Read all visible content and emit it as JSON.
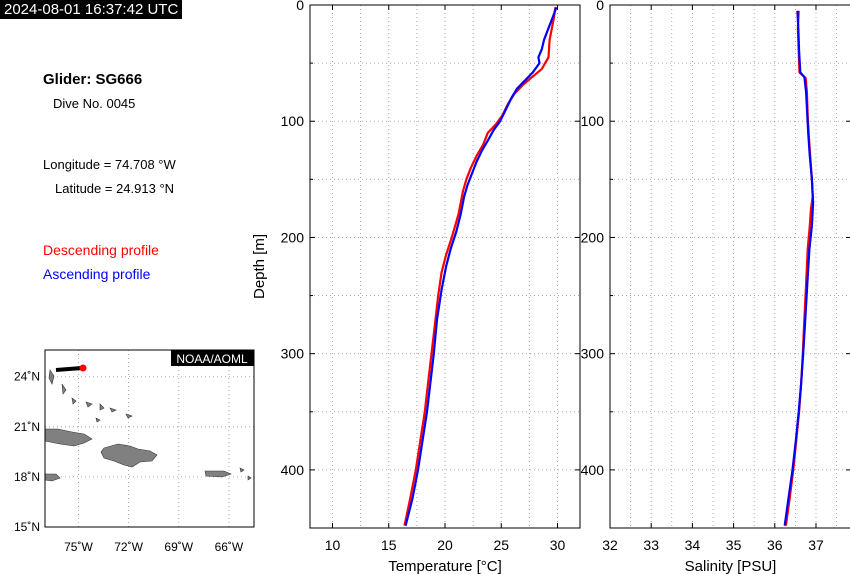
{
  "header": {
    "timestamp": "2024-08-01 16:37:42 UTC",
    "glider": "Glider: SG666",
    "dive": "Dive No. 0045",
    "longitude": "Longitude = 74.708 °W",
    "latitude": "Latitude = 24.913 °N"
  },
  "legend": {
    "descending": "Descending profile",
    "ascending": "Ascending profile",
    "descending_color": "#ff0000",
    "ascending_color": "#0000ff"
  },
  "map": {
    "badge": "NOAA/AOML",
    "lat_labels": [
      "24˚N",
      "21˚N",
      "18˚N",
      "15˚N"
    ],
    "lon_labels": [
      "75˚W",
      "72˚W",
      "69˚W",
      "66˚W"
    ],
    "land_color": "#808080",
    "track_color": "#000000",
    "position_color": "#ff0000"
  },
  "chart_data": [
    {
      "type": "line",
      "xlabel": "Temperature [°C]",
      "ylabel": "Depth [m]",
      "xlim": [
        8,
        32
      ],
      "ylim": [
        0,
        450
      ],
      "y_inverted": true,
      "xticks": [
        10,
        15,
        20,
        25,
        30
      ],
      "yticks": [
        0,
        100,
        200,
        300,
        400
      ],
      "grid": true,
      "series": [
        {
          "name": "Descending profile",
          "color": "#ff0000",
          "points": [
            [
              29.8,
              2
            ],
            [
              29.7,
              10
            ],
            [
              29.5,
              20
            ],
            [
              29.3,
              30
            ],
            [
              29.2,
              45
            ],
            [
              28.6,
              55
            ],
            [
              28.0,
              60
            ],
            [
              27.0,
              68
            ],
            [
              26.2,
              76
            ],
            [
              25.6,
              85
            ],
            [
              25.1,
              95
            ],
            [
              24.5,
              103
            ],
            [
              23.8,
              110
            ],
            [
              23.4,
              120
            ],
            [
              22.8,
              130
            ],
            [
              22.3,
              140
            ],
            [
              21.9,
              150
            ],
            [
              21.6,
              160
            ],
            [
              21.2,
              180
            ],
            [
              20.6,
              200
            ],
            [
              20.1,
              215
            ],
            [
              19.7,
              230
            ],
            [
              19.4,
              250
            ],
            [
              19.1,
              275
            ],
            [
              18.8,
              300
            ],
            [
              18.5,
              325
            ],
            [
              18.2,
              350
            ],
            [
              17.8,
              375
            ],
            [
              17.4,
              400
            ],
            [
              16.9,
              425
            ],
            [
              16.4,
              448
            ]
          ]
        },
        {
          "name": "Ascending profile",
          "color": "#0000ff",
          "points": [
            [
              29.9,
              2
            ],
            [
              29.6,
              10
            ],
            [
              29.2,
              20
            ],
            [
              28.8,
              30
            ],
            [
              28.6,
              38
            ],
            [
              28.3,
              45
            ],
            [
              28.4,
              50
            ],
            [
              27.8,
              58
            ],
            [
              27.0,
              66
            ],
            [
              26.4,
              72
            ],
            [
              25.9,
              80
            ],
            [
              25.4,
              90
            ],
            [
              24.9,
              100
            ],
            [
              24.3,
              108
            ],
            [
              23.9,
              115
            ],
            [
              23.3,
              125
            ],
            [
              22.8,
              135
            ],
            [
              22.4,
              145
            ],
            [
              22.0,
              155
            ],
            [
              21.7,
              165
            ],
            [
              21.4,
              180
            ],
            [
              21.0,
              195
            ],
            [
              20.5,
              210
            ],
            [
              20.1,
              225
            ],
            [
              19.7,
              245
            ],
            [
              19.3,
              270
            ],
            [
              19.0,
              300
            ],
            [
              18.7,
              325
            ],
            [
              18.4,
              350
            ],
            [
              18.0,
              375
            ],
            [
              17.6,
              400
            ],
            [
              17.1,
              425
            ],
            [
              16.5,
              448
            ]
          ]
        }
      ]
    },
    {
      "type": "line",
      "xlabel": "Salinity [PSU]",
      "ylabel": "",
      "xlim": [
        32,
        37.85
      ],
      "ylim": [
        0,
        450
      ],
      "y_inverted": true,
      "xticks": [
        32,
        33,
        34,
        35,
        36,
        37
      ],
      "yticks": [
        0,
        100,
        200,
        300,
        400
      ],
      "grid": true,
      "series": [
        {
          "name": "Descending profile",
          "color": "#ff0000",
          "points": [
            [
              36.58,
              5
            ],
            [
              36.56,
              20
            ],
            [
              36.58,
              40
            ],
            [
              36.6,
              58
            ],
            [
              36.75,
              63
            ],
            [
              36.78,
              75
            ],
            [
              36.8,
              95
            ],
            [
              36.82,
              110
            ],
            [
              36.86,
              130
            ],
            [
              36.9,
              150
            ],
            [
              36.92,
              165
            ],
            [
              36.88,
              175
            ],
            [
              36.85,
              190
            ],
            [
              36.8,
              210
            ],
            [
              36.76,
              240
            ],
            [
              36.72,
              270
            ],
            [
              36.68,
              300
            ],
            [
              36.64,
              325
            ],
            [
              36.59,
              350
            ],
            [
              36.52,
              375
            ],
            [
              36.45,
              400
            ],
            [
              36.36,
              425
            ],
            [
              36.27,
              448
            ]
          ]
        },
        {
          "name": "Ascending profile",
          "color": "#0000ff",
          "points": [
            [
              36.55,
              5
            ],
            [
              36.57,
              20
            ],
            [
              36.59,
              40
            ],
            [
              36.62,
              58
            ],
            [
              36.72,
              62
            ],
            [
              36.76,
              75
            ],
            [
              36.79,
              95
            ],
            [
              36.81,
              110
            ],
            [
              36.85,
              130
            ],
            [
              36.9,
              150
            ],
            [
              36.93,
              170
            ],
            [
              36.9,
              190
            ],
            [
              36.84,
              210
            ],
            [
              36.79,
              240
            ],
            [
              36.74,
              270
            ],
            [
              36.69,
              300
            ],
            [
              36.64,
              325
            ],
            [
              36.58,
              350
            ],
            [
              36.51,
              375
            ],
            [
              36.43,
              400
            ],
            [
              36.33,
              425
            ],
            [
              36.24,
              448
            ]
          ]
        }
      ]
    }
  ]
}
